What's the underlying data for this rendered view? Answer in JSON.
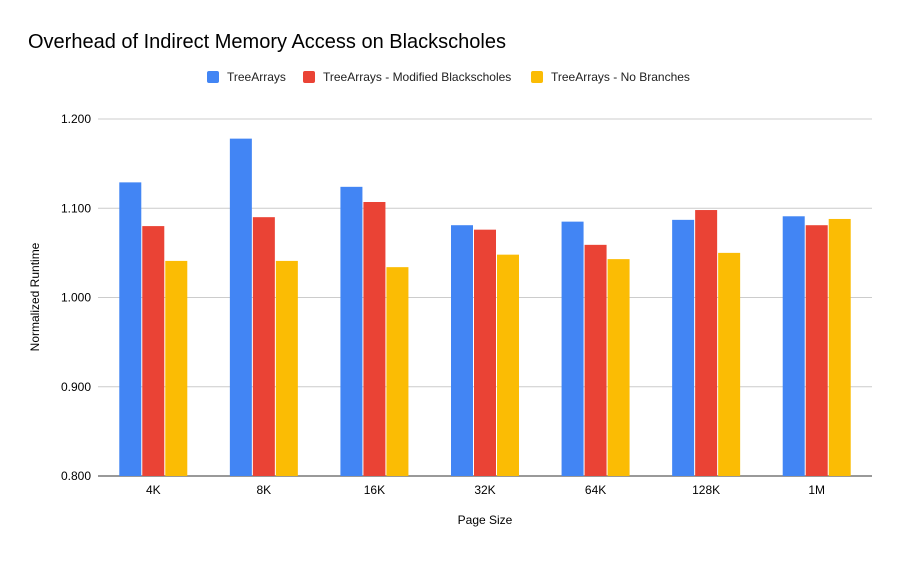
{
  "chart_data": {
    "type": "bar",
    "title": "Overhead of Indirect Memory Access on Blackscholes",
    "xlabel": "Page Size",
    "ylabel": "Normalized Runtime",
    "ylim": [
      0.8,
      1.2
    ],
    "yticks": [
      "0.800",
      "0.900",
      "1.000",
      "1.100",
      "1.200"
    ],
    "grid": true,
    "legend_position": "top",
    "categories": [
      "4K",
      "8K",
      "16K",
      "32K",
      "64K",
      "128K",
      "1M"
    ],
    "series": [
      {
        "name": "TreeArrays",
        "color": "#4285f4",
        "values": [
          1.129,
          1.178,
          1.124,
          1.081,
          1.085,
          1.087,
          1.091
        ]
      },
      {
        "name": "TreeArrays - Modified Blackscholes",
        "color": "#ea4335",
        "values": [
          1.08,
          1.09,
          1.107,
          1.076,
          1.059,
          1.098,
          1.081
        ]
      },
      {
        "name": "TreeArrays - No Branches",
        "color": "#fbbc04",
        "values": [
          1.041,
          1.041,
          1.034,
          1.048,
          1.043,
          1.05,
          1.088
        ]
      }
    ]
  }
}
